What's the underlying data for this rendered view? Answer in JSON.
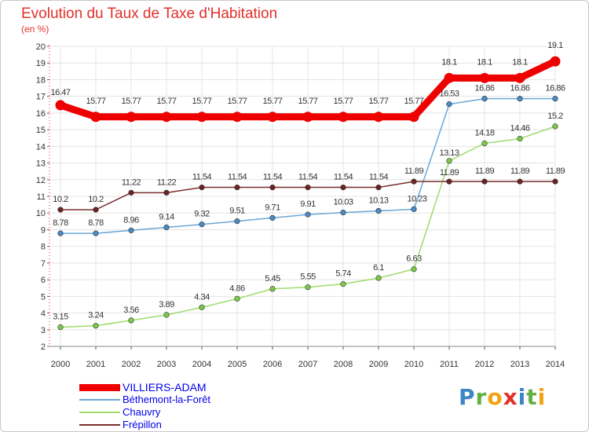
{
  "header": {
    "title": "Evolution du Taux de Taxe d'Habitation",
    "unit": "(en %)"
  },
  "logo": {
    "text": "Proxiti"
  },
  "chart_data": {
    "type": "line",
    "title": "Evolution du Taux de Taxe d'Habitation",
    "ylabel": "(en %)",
    "xlabel": "",
    "x": [
      "2000",
      "2001",
      "2002",
      "2003",
      "2004",
      "2005",
      "2006",
      "2007",
      "2008",
      "2009",
      "2010",
      "2011",
      "2012",
      "2013",
      "2014"
    ],
    "ylim": [
      2,
      20
    ],
    "yticks": [
      2,
      3,
      4,
      5,
      6,
      7,
      8,
      9,
      10,
      11,
      12,
      13,
      14,
      15,
      16,
      17,
      18,
      19,
      20
    ],
    "grid": true,
    "legend_position": "bottom-left",
    "series": [
      {
        "name": "VILLIERS-ADAM",
        "color": "#ee0000",
        "marker": "#ee0000",
        "values": [
          16.47,
          15.77,
          15.77,
          15.77,
          15.77,
          15.77,
          15.77,
          15.77,
          15.77,
          15.77,
          15.77,
          18.1,
          18.1,
          18.1,
          19.1
        ],
        "labels": [
          "16.47",
          "15.77",
          "15.77",
          "15.77",
          "15.77",
          "15.77",
          "15.77",
          "15.77",
          "15.77",
          "15.77",
          "15.77",
          "18.1",
          "18.1",
          "18.1",
          "19.1"
        ]
      },
      {
        "name": "Béthemont-la-Forêt",
        "color": "#6aa7d6",
        "marker": "#4a8ac4",
        "values": [
          8.78,
          8.78,
          8.96,
          9.14,
          9.32,
          9.51,
          9.71,
          9.91,
          10.03,
          10.13,
          10.23,
          16.53,
          16.86,
          16.86,
          16.86
        ],
        "labels": [
          "8.78",
          "8.78",
          "8.96",
          "9.14",
          "9.32",
          "9.51",
          "9.71",
          "9.91",
          "10.03",
          "10.13",
          "10.23",
          "16.53",
          "16.86",
          "16.86",
          "16.86"
        ]
      },
      {
        "name": "Chauvry",
        "color": "#9edb6c",
        "marker": "#7cc94a",
        "values": [
          3.15,
          3.24,
          3.56,
          3.89,
          4.34,
          4.86,
          5.45,
          5.55,
          5.74,
          6.1,
          6.63,
          13.13,
          14.18,
          14.46,
          15.2
        ],
        "labels": [
          "3.15",
          "3.24",
          "3.56",
          "3.89",
          "4.34",
          "4.86",
          "5.45",
          "5.55",
          "5.74",
          "6.1",
          "6.63",
          "13.13",
          "14.18",
          "14.46",
          "15.2"
        ]
      },
      {
        "name": "Frépillon",
        "color": "#7a2c2c",
        "marker": "#6e2222",
        "values": [
          10.2,
          10.2,
          11.22,
          11.22,
          11.54,
          11.54,
          11.54,
          11.54,
          11.54,
          11.54,
          11.89,
          11.89,
          11.89,
          11.89,
          11.89
        ],
        "labels": [
          "10.2",
          "10.2",
          "11.22",
          "11.22",
          "11.54",
          "11.54",
          "11.54",
          "11.54",
          "11.54",
          "11.54",
          "11.89",
          "11.89",
          "11.89",
          "11.89",
          "11.89"
        ]
      }
    ]
  }
}
